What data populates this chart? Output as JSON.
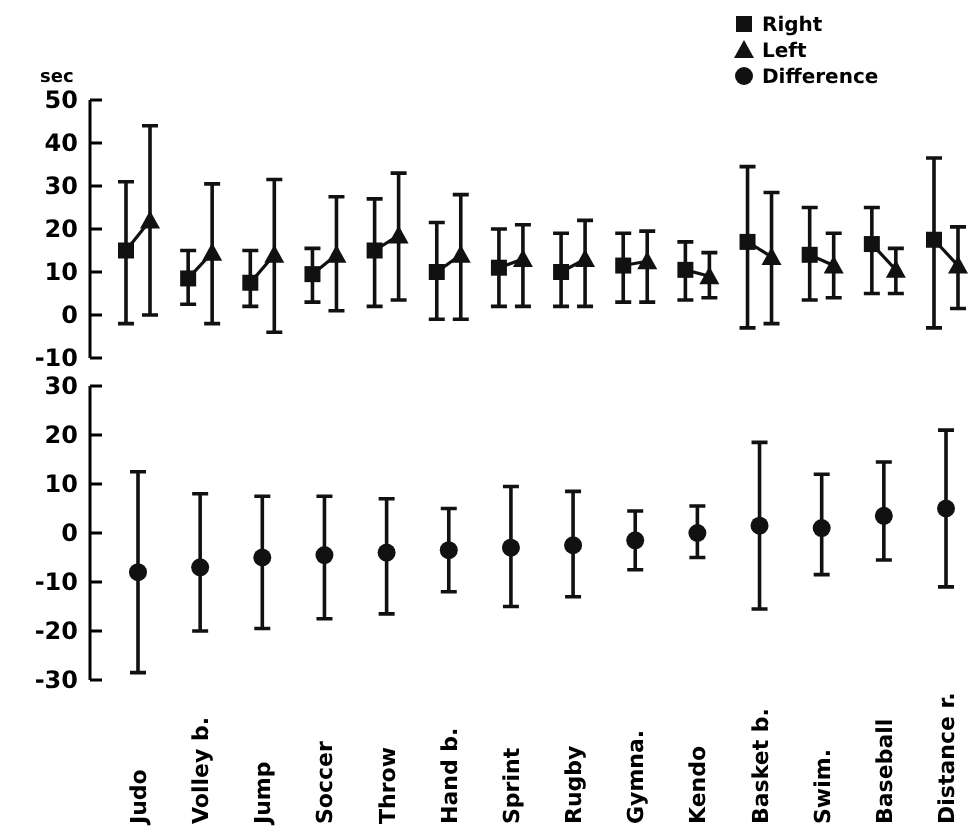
{
  "chart_data": [
    {
      "type": "scatter",
      "ylabel": "sec",
      "categories": [
        "Judo",
        "Volley b.",
        "Jump",
        "Soccer",
        "Throw",
        "Hand b.",
        "Sprint",
        "Rugby",
        "Gymna.",
        "Kendo",
        "Basket b.",
        "Swim.",
        "Baseball",
        "Distance r."
      ],
      "ylim": [
        -10,
        50
      ],
      "yticks": [
        -10,
        0,
        10,
        20,
        30,
        40,
        50
      ],
      "tick_labels": "y",
      "legend": "top right",
      "series": [
        {
          "name": "Right",
          "color": "#111111",
          "marker": "square",
          "values": [
            15,
            8.5,
            7.5,
            9.5,
            15,
            10,
            11,
            10,
            11.5,
            10.5,
            17,
            14,
            16.5,
            17.5
          ],
          "errors": [
            [
              -2,
              31
            ],
            [
              2.5,
              15
            ],
            [
              2,
              15
            ],
            [
              3,
              15.5
            ],
            [
              2,
              27
            ],
            [
              -1,
              21.5
            ],
            [
              2,
              20
            ],
            [
              2,
              19
            ],
            [
              3,
              19
            ],
            [
              3.5,
              17
            ],
            [
              -3,
              34.5
            ],
            [
              3.5,
              25
            ],
            [
              5,
              25
            ],
            [
              -3,
              36.5
            ]
          ]
        },
        {
          "name": "Left",
          "color": "#111111",
          "marker": "triangle",
          "values": [
            22,
            14.5,
            14,
            14,
            18.5,
            14,
            13,
            13,
            12.5,
            9,
            13.5,
            11.5,
            10.5,
            11.5
          ],
          "errors": [
            [
              0,
              44
            ],
            [
              -2,
              30.5
            ],
            [
              -4,
              31.5
            ],
            [
              1,
              27.5
            ],
            [
              3.5,
              33
            ],
            [
              -1,
              28
            ],
            [
              2,
              21
            ],
            [
              2,
              22
            ],
            [
              3,
              19.5
            ],
            [
              4,
              14.5
            ],
            [
              -2,
              28.5
            ],
            [
              4,
              19
            ],
            [
              5,
              15.5
            ],
            [
              1.5,
              20.5
            ]
          ]
        }
      ]
    },
    {
      "type": "scatter",
      "categories": [
        "Judo",
        "Volley b.",
        "Jump",
        "Soccer",
        "Throw",
        "Hand b.",
        "Sprint",
        "Rugby",
        "Gymna.",
        "Kendo",
        "Basket b.",
        "Swim.",
        "Baseball",
        "Distance r."
      ],
      "ylim": [
        -30,
        30
      ],
      "yticks": [
        -30,
        -20,
        -10,
        0,
        10,
        20,
        30
      ],
      "legend": "top right",
      "series": [
        {
          "name": "Difference",
          "color": "#111111",
          "marker": "circle",
          "values": [
            -8,
            -7,
            -5,
            -4.5,
            -4,
            -3.5,
            -3,
            -2.5,
            -1.5,
            0,
            1.5,
            1,
            3.5,
            5
          ],
          "errors": [
            [
              -28.5,
              12.5
            ],
            [
              -20,
              8
            ],
            [
              -19.5,
              7.5
            ],
            [
              -17.5,
              7.5
            ],
            [
              -16.5,
              7
            ],
            [
              -12,
              5
            ],
            [
              -15,
              9.5
            ],
            [
              -13,
              8.5
            ],
            [
              -7.5,
              4.5
            ],
            [
              -5,
              5.5
            ],
            [
              -15.5,
              18.5
            ],
            [
              -8.5,
              12
            ],
            [
              -5.5,
              14.5
            ],
            [
              -11,
              21
            ]
          ]
        }
      ]
    }
  ]
}
